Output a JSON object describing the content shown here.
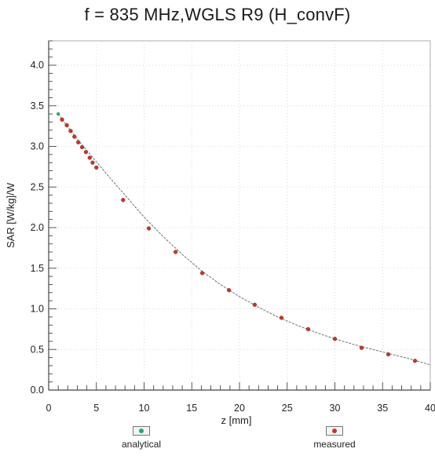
{
  "chart_data": {
    "type": "scatter",
    "title": "f = 835 MHz,WGLS R9 (H_convF)",
    "xlabel": "z [mm]",
    "ylabel": "SAR [W/kg]/W",
    "xlim": [
      0,
      40
    ],
    "ylim": [
      0,
      4.3
    ],
    "xticks": [
      0,
      5,
      10,
      15,
      20,
      25,
      30,
      35,
      40
    ],
    "yticks": [
      0.0,
      0.5,
      1.0,
      1.5,
      2.0,
      2.5,
      3.0,
      3.5,
      4.0
    ],
    "xtick_labels": [
      "0",
      "5",
      "10",
      "15",
      "20",
      "25",
      "30",
      "35",
      "40"
    ],
    "ytick_labels": [
      "0.0",
      "0.5",
      "1.0",
      "1.5",
      "2.0",
      "2.5",
      "3.0",
      "3.5",
      "4.0"
    ],
    "grid": true,
    "legend_position": "bottom",
    "series": [
      {
        "name": "analytical",
        "kind": "line",
        "color": "#2fa36b",
        "x": [
          1.0,
          2.0,
          3.0,
          4.0,
          5.0,
          6.0,
          8.0,
          10.0,
          12.0,
          14.0,
          16.0,
          18.0,
          20.0,
          22.0,
          24.0,
          26.0,
          28.0,
          30.0,
          32.0,
          34.0,
          36.0,
          38.0,
          40.0
        ],
        "y": [
          3.4,
          3.24,
          3.09,
          2.95,
          2.81,
          2.67,
          2.4,
          2.13,
          1.89,
          1.67,
          1.47,
          1.3,
          1.15,
          1.02,
          0.9,
          0.8,
          0.71,
          0.63,
          0.56,
          0.5,
          0.44,
          0.38,
          0.31
        ]
      },
      {
        "name": "measured",
        "kind": "points",
        "color": "#c0392b",
        "x": [
          1.4,
          1.9,
          2.3,
          2.7,
          3.1,
          3.5,
          3.9,
          4.3,
          4.6,
          5.0,
          7.8,
          10.5,
          13.3,
          16.1,
          18.9,
          21.6,
          24.4,
          27.2,
          30.0,
          32.8,
          35.6,
          38.4
        ],
        "y": [
          3.33,
          3.26,
          3.19,
          3.12,
          3.05,
          2.99,
          2.93,
          2.86,
          2.8,
          2.74,
          2.34,
          1.99,
          1.7,
          1.44,
          1.23,
          1.05,
          0.89,
          0.75,
          0.63,
          0.52,
          0.44,
          0.36
        ]
      }
    ]
  }
}
